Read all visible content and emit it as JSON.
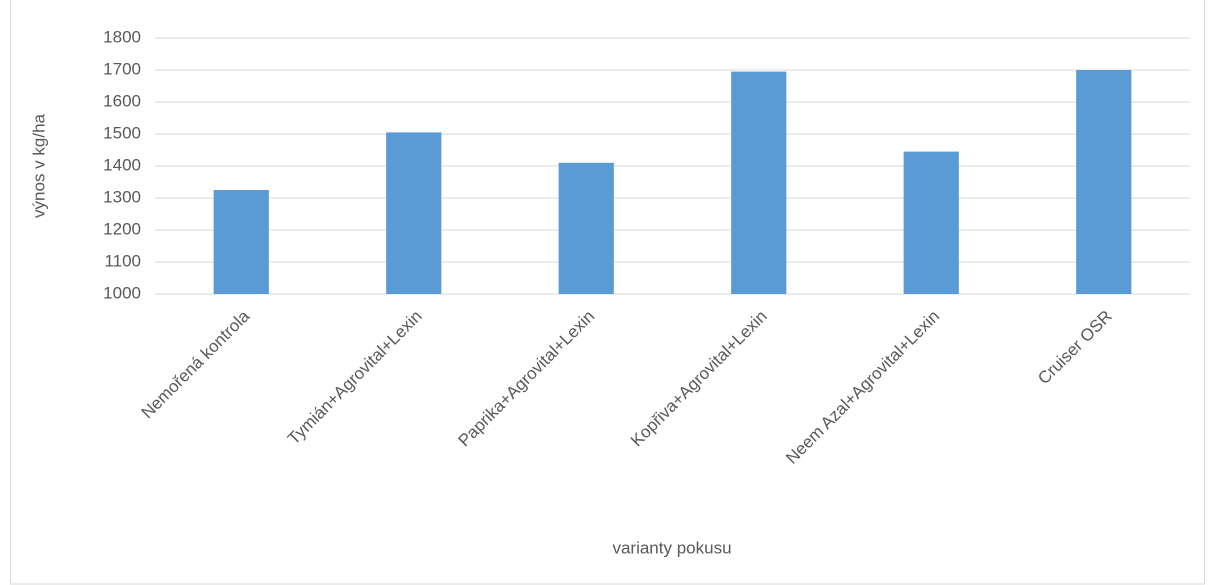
{
  "chart_data": {
    "type": "bar",
    "x_label": "varianty pokusu",
    "y_label": "výnos v kg/ha",
    "categories": [
      "Nemořená kontrola",
      "Tymián+Agrovital+Lexin",
      "Paprika+Agrovital+Lexin",
      "Kopřiva+Agrovital+Lexin",
      "Neem Azal+Agrovital+Lexin",
      "Cruiser OSR"
    ],
    "values": [
      1325,
      1505,
      1410,
      1695,
      1445,
      1700
    ],
    "color": "#5b9bd5",
    "ylim": [
      1000,
      1800
    ],
    "yticks": [
      1000,
      1100,
      1200,
      1300,
      1400,
      1500,
      1600,
      1700,
      1800
    ],
    "grid": true
  }
}
